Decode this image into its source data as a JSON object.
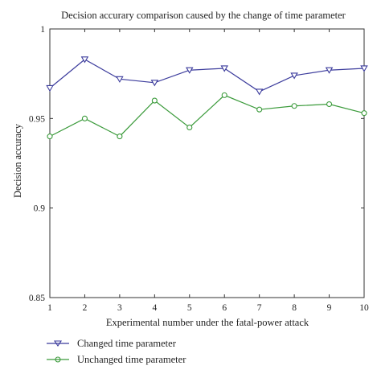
{
  "chart_data": {
    "type": "line",
    "title": "Decision accurary comparison caused by the change of time parameter",
    "xlabel": "Experimental number under the fatal-power attack",
    "ylabel": "Decision accuracy",
    "x": [
      1,
      2,
      3,
      4,
      5,
      6,
      7,
      8,
      9,
      10
    ],
    "xticks": [
      "1",
      "2",
      "3",
      "4",
      "5",
      "6",
      "7",
      "8",
      "9",
      "10"
    ],
    "xlim": [
      1,
      10
    ],
    "ylim": [
      0.85,
      1
    ],
    "yticks": [
      0.85,
      0.9,
      0.95,
      1
    ],
    "ytick_labels": [
      "0.85",
      "0.9",
      "0.95",
      "1"
    ],
    "grid": false,
    "legend_position": "bottom-left, below plot",
    "series": [
      {
        "name": "Changed time parameter",
        "color": "#3b3b9c",
        "marker": "triangle-down",
        "values": [
          0.967,
          0.983,
          0.972,
          0.97,
          0.977,
          0.978,
          0.965,
          0.974,
          0.977,
          0.978
        ]
      },
      {
        "name": "Unchanged time parameter",
        "color": "#3a9a3a",
        "marker": "circle",
        "values": [
          0.94,
          0.95,
          0.94,
          0.96,
          0.945,
          0.963,
          0.955,
          0.957,
          0.958,
          0.953
        ]
      }
    ]
  }
}
